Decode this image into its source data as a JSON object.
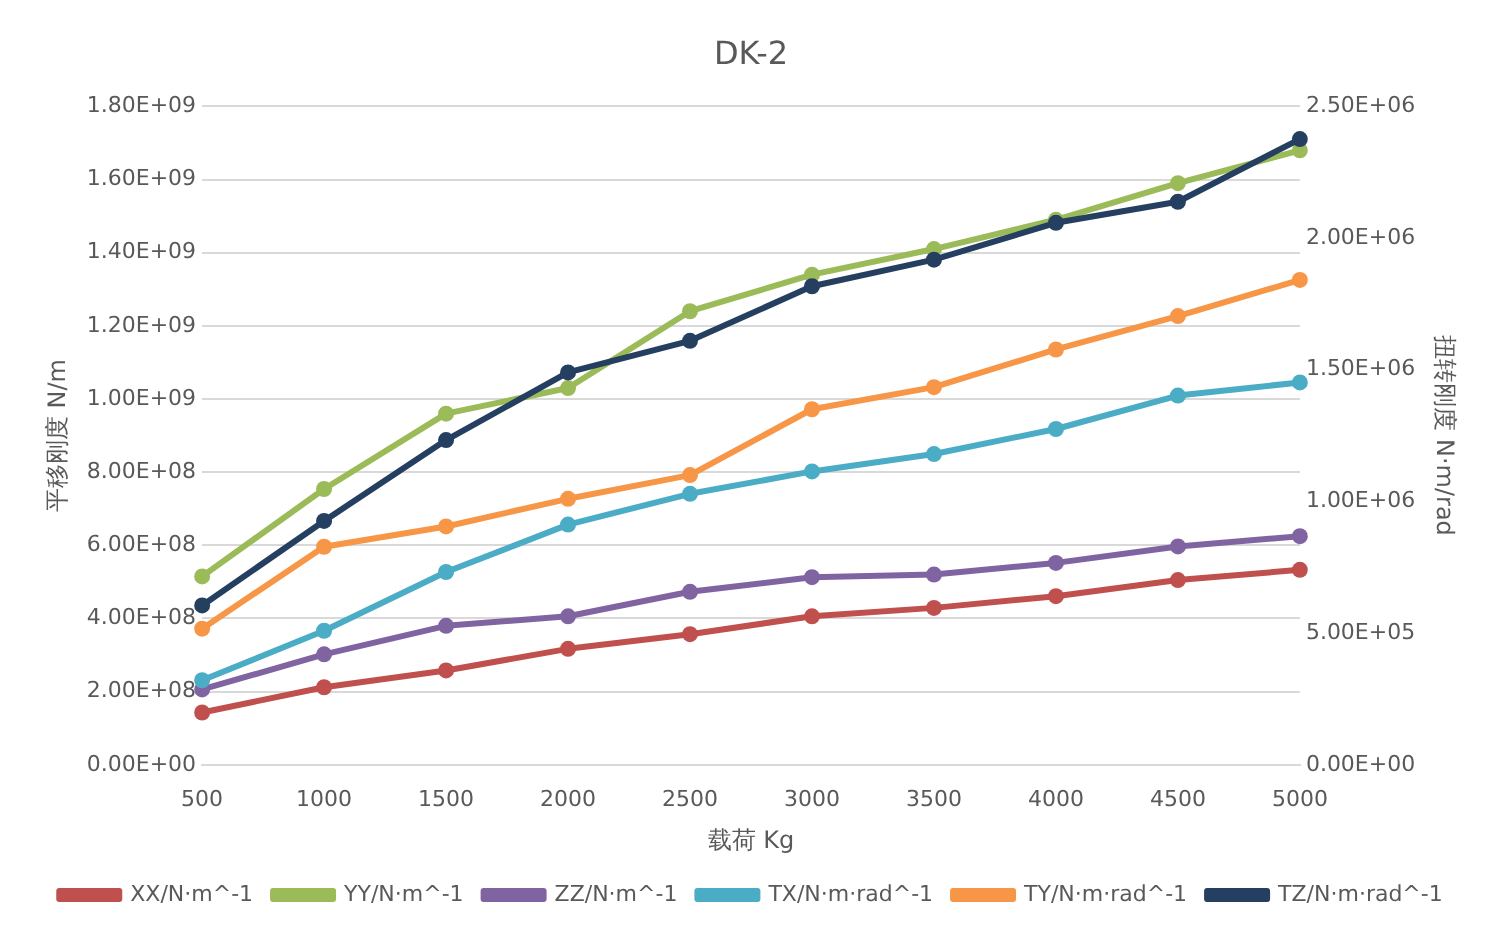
{
  "chart_data": {
    "type": "line",
    "title": "DK-2",
    "xlabel": "载荷 Kg",
    "ylabel": "平移刚度 N/m",
    "y2label": "扭转刚度 N·m/rad",
    "categories": [
      "500",
      "1000",
      "1500",
      "2000",
      "2500",
      "3000",
      "3500",
      "4000",
      "4500",
      "5000"
    ],
    "series": [
      {
        "name": "XX/N·m^-1",
        "color": "#c0504d",
        "values": [
          143000000.0,
          212000000.0,
          258000000.0,
          317000000.0,
          357000000.0,
          406000000.0,
          429000000.0,
          461000000.0,
          505000000.0,
          533000000.0
        ]
      },
      {
        "name": "YY/N·m^-1",
        "color": "#9bbb59",
        "values": [
          515000000.0,
          754000000.0,
          960000000.0,
          1030000000.0,
          1240000000.0,
          1340000000.0,
          1410000000.0,
          1490000000.0,
          1590000000.0,
          1680000000.0
        ]
      },
      {
        "name": "ZZ/N·m^-1",
        "color": "#8064a2",
        "values": [
          206000000.0,
          302000000.0,
          380000000.0,
          406000000.0,
          473000000.0,
          513000000.0,
          520000000.0,
          552000000.0,
          597000000.0,
          625000000.0
        ]
      },
      {
        "name": "TX/N·m·rad^-1",
        "color": "#4bacc6",
        "axis": "y2",
        "values": [
          321000.0,
          509000.0,
          732000.0,
          912000.0,
          1029000.0,
          1114000.0,
          1180000.0,
          1275000.0,
          1402000.0,
          1452000.0
        ]
      },
      {
        "name": "TY/N·m·rad^-1",
        "color": "#f79646",
        "axis": "y2",
        "values": [
          517000.0,
          828000.0,
          905000.0,
          1010000.0,
          1100000.0,
          1350000.0,
          1434000.0,
          1577000.0,
          1704000.0,
          1841000.0
        ]
      },
      {
        "name": "TZ/N·m·rad^-1",
        "color": "#243f60",
        "axis": "y2",
        "values": [
          605000.0,
          926000.0,
          1233000.0,
          1490000.0,
          1610000.0,
          1817000.0,
          1918000.0,
          2058000.0,
          2138000.0,
          2376000.0
        ]
      }
    ],
    "ylim": [
      0,
      1800000000.0
    ],
    "yticks": [
      {
        "value": 0,
        "label": "0.00E+00"
      },
      {
        "value": 200000000.0,
        "label": "2.00E+08"
      },
      {
        "value": 400000000.0,
        "label": "4.00E+08"
      },
      {
        "value": 600000000.0,
        "label": "6.00E+08"
      },
      {
        "value": 800000000.0,
        "label": "8.00E+08"
      },
      {
        "value": 1000000000.0,
        "label": "1.00E+09"
      },
      {
        "value": 1200000000.0,
        "label": "1.20E+09"
      },
      {
        "value": 1400000000.0,
        "label": "1.40E+09"
      },
      {
        "value": 1600000000.0,
        "label": "1.60E+09"
      },
      {
        "value": 1800000000.0,
        "label": "1.80E+09"
      }
    ],
    "y2lim": [
      0,
      2500000.0
    ],
    "y2ticks": [
      {
        "value": 0,
        "label": "0.00E+00"
      },
      {
        "value": 500000.0,
        "label": "5.00E+05"
      },
      {
        "value": 1000000.0,
        "label": "1.00E+06"
      },
      {
        "value": 1500000.0,
        "label": "1.50E+06"
      },
      {
        "value": 2000000.0,
        "label": "2.00E+06"
      },
      {
        "value": 2500000.0,
        "label": "2.50E+06"
      }
    ],
    "grid": "y",
    "legend": "bottom",
    "marker": "circle",
    "line_style": "solid"
  }
}
